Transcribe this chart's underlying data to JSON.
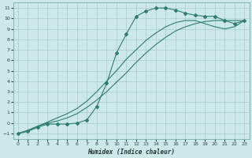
{
  "xlabel": "Humidex (Indice chaleur)",
  "background_color": "#cce8e8",
  "grid_color": "#aacccc",
  "line_color": "#2e7d6e",
  "xlim": [
    -0.5,
    23.5
  ],
  "ylim": [
    -1.5,
    11.5
  ],
  "xticks": [
    0,
    1,
    2,
    3,
    4,
    5,
    6,
    7,
    8,
    9,
    10,
    11,
    12,
    13,
    14,
    15,
    16,
    17,
    18,
    19,
    20,
    21,
    22,
    23
  ],
  "yticks": [
    -1,
    0,
    1,
    2,
    3,
    4,
    5,
    6,
    7,
    8,
    9,
    10,
    11
  ],
  "curve_marker_x": [
    0,
    1,
    2,
    3,
    4,
    5,
    6,
    7,
    8,
    9,
    10,
    11,
    12,
    13,
    14,
    15,
    16,
    17,
    18,
    19,
    20,
    21,
    22,
    23
  ],
  "curve_marker_y": [
    -1,
    -0.8,
    -0.4,
    -0.1,
    -0.1,
    -0.1,
    0.0,
    0.3,
    1.6,
    3.8,
    6.7,
    8.5,
    10.2,
    10.7,
    11.0,
    11.0,
    10.8,
    10.5,
    10.3,
    10.2,
    10.2,
    9.8,
    9.5,
    9.8
  ],
  "curve2_x": [
    0,
    1,
    2,
    3,
    4,
    5,
    6,
    7,
    8,
    9,
    10,
    11,
    12,
    13,
    14,
    15,
    16,
    17,
    18,
    19,
    20,
    21,
    22,
    23
  ],
  "curve2_y": [
    -1,
    -0.7,
    -0.3,
    0.0,
    0.2,
    0.5,
    0.9,
    1.5,
    2.2,
    3.0,
    3.9,
    4.8,
    5.8,
    6.7,
    7.5,
    8.2,
    8.8,
    9.2,
    9.5,
    9.7,
    9.8,
    9.8,
    9.8,
    9.8
  ],
  "curve3_x": [
    0,
    1,
    2,
    3,
    4,
    5,
    6,
    7,
    8,
    9,
    10,
    11,
    12,
    13,
    14,
    15,
    16,
    17,
    18,
    19,
    20,
    21,
    22,
    23
  ],
  "curve3_y": [
    -1,
    -0.7,
    -0.3,
    0.1,
    0.5,
    0.9,
    1.4,
    2.1,
    3.0,
    4.0,
    5.0,
    6.1,
    7.0,
    7.9,
    8.6,
    9.2,
    9.6,
    9.8,
    9.8,
    9.5,
    9.2,
    9.0,
    9.2,
    9.8
  ]
}
